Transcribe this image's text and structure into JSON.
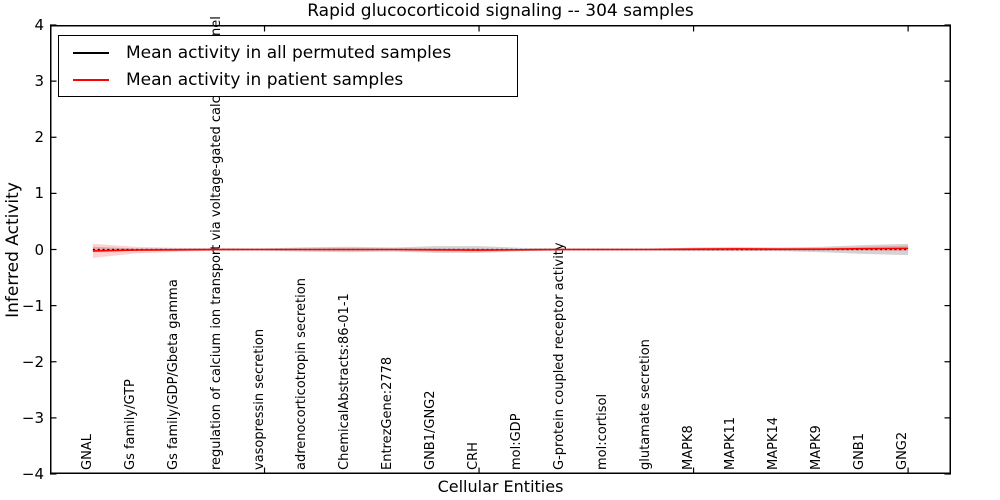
{
  "title": "Rapid glucocorticoid signaling -- 304 samples",
  "legend": {
    "items": [
      {
        "label": "Mean activity in all permuted samples",
        "color": "#000000"
      },
      {
        "label": "Mean activity in patient samples",
        "color": "#ff0000"
      }
    ]
  },
  "axes": {
    "ylabel": "Inferred Activity",
    "xlabel": "Cellular Entities",
    "ytick_values": [
      4,
      3,
      2,
      1,
      0,
      -1,
      -2,
      -3,
      -4
    ],
    "ytick_labels": [
      "4",
      "3",
      "2",
      "1",
      "0",
      "−1",
      "−2",
      "−3",
      "−4"
    ],
    "ylim": [
      -4,
      4
    ]
  },
  "chart_data": {
    "type": "line",
    "title": "Rapid glucocorticoid signaling -- 304 samples",
    "xlabel": "Cellular Entities",
    "ylabel": "Inferred Activity",
    "ylim": [
      -4,
      4
    ],
    "grid": false,
    "legend_position": "upper left",
    "categories": [
      "GNAL",
      "Gs family/GTP",
      "Gs family/GDP/Gbeta gamma",
      "regulation of calcium ion transport via voltage-gated calcium channel",
      "vasopressin secretion",
      "adrenocorticotropin secretion",
      "ChemicalAbstracts:86-01-1",
      "EntrezGene:2778",
      "GNB1/GNG2",
      "CRH",
      "mol:GDP",
      "G-protein coupled receptor activity",
      "mol:cortisol",
      "glutamate secretion",
      "MAPK8",
      "MAPK11",
      "MAPK14",
      "MAPK9",
      "GNB1",
      "GNG2"
    ],
    "series": [
      {
        "name": "Mean activity in all permuted samples",
        "color": "#000000",
        "line_style": "dashed",
        "values": [
          0,
          0,
          0,
          0,
          0,
          0,
          0,
          0,
          0,
          0,
          0,
          0,
          0,
          0,
          0,
          0,
          0,
          0,
          0,
          0
        ],
        "band_halfwidth": [
          0.05,
          0.02,
          0.02,
          0.02,
          0.02,
          0.04,
          0.05,
          0.035,
          0.06,
          0.06,
          0.03,
          0.02,
          0.02,
          0.02,
          0.03,
          0.03,
          0.03,
          0.05,
          0.08,
          0.1
        ],
        "band_color": "rgba(128,128,128,0.35)"
      },
      {
        "name": "Mean activity in patient samples",
        "color": "#ff0000",
        "line_style": "solid",
        "values": [
          -0.025,
          -0.01,
          -0.005,
          0,
          0,
          0,
          0,
          0,
          -0.005,
          -0.01,
          -0.005,
          0,
          0,
          0,
          0.005,
          0.01,
          0.005,
          0.005,
          0.015,
          0.02
        ],
        "band_halfwidth": [
          0.125,
          0.06,
          0.035,
          0.02,
          0.015,
          0.015,
          0.02,
          0.015,
          0.025,
          0.025,
          0.015,
          0.015,
          0.015,
          0.015,
          0.03,
          0.04,
          0.03,
          0.025,
          0.035,
          0.05
        ],
        "band_color": "rgba(255,0,0,0.18)"
      }
    ]
  }
}
